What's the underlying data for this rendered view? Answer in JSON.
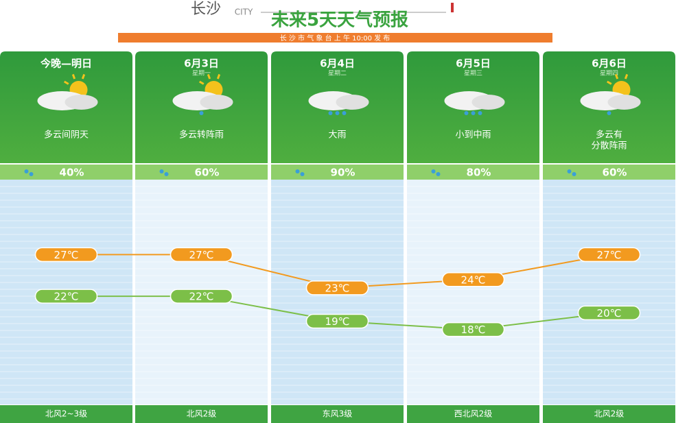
{
  "header": {
    "city": "长沙",
    "city_en": "CITY",
    "title": "未来5天天气预报",
    "subtitle": "长 沙 市 气 象 台 上 午 10:00 发 布"
  },
  "days": [
    {
      "weather": [
        "多云间阴天"
      ],
      "rain": "40%",
      "wind": "北风2~3级"
    },
    {
      "weekday": "星期一",
      "weather": [
        "多云转阵雨"
      ],
      "rain": "60%",
      "wind": "北风2级"
    },
    {
      "weekday": "星期二",
      "weather": [
        "大雨"
      ],
      "rain": "90%",
      "wind": "东风3级"
    },
    {
      "weekday": "星期三",
      "weather": [
        "小到中雨"
      ],
      "rain": "80%",
      "wind": "西北风2级"
    },
    {
      "weekday": "星期四",
      "weather": [
        "多云有",
        "分散阵雨"
      ],
      "rain": "60%",
      "wind": "北风2级"
    }
  ],
  "chart_data": {
    "type": "line",
    "categories": [
      "今晚—明日",
      "6月3日",
      "6月4日",
      "6月5日",
      "6月6日"
    ],
    "series": [
      {
        "color": "#f29a1f",
        "values": [
          27,
          27,
          23,
          24,
          27
        ],
        "value_labels": [
          "27℃",
          "27℃",
          "23℃",
          "24℃",
          "27℃"
        ]
      },
      {
        "color": "#7cbf48",
        "values": [
          22,
          22,
          19,
          18,
          20
        ],
        "value_labels": [
          "22℃",
          "22℃",
          "19℃",
          "18℃",
          "20℃"
        ]
      }
    ],
    "ylim": [
      9,
      36
    ]
  }
}
